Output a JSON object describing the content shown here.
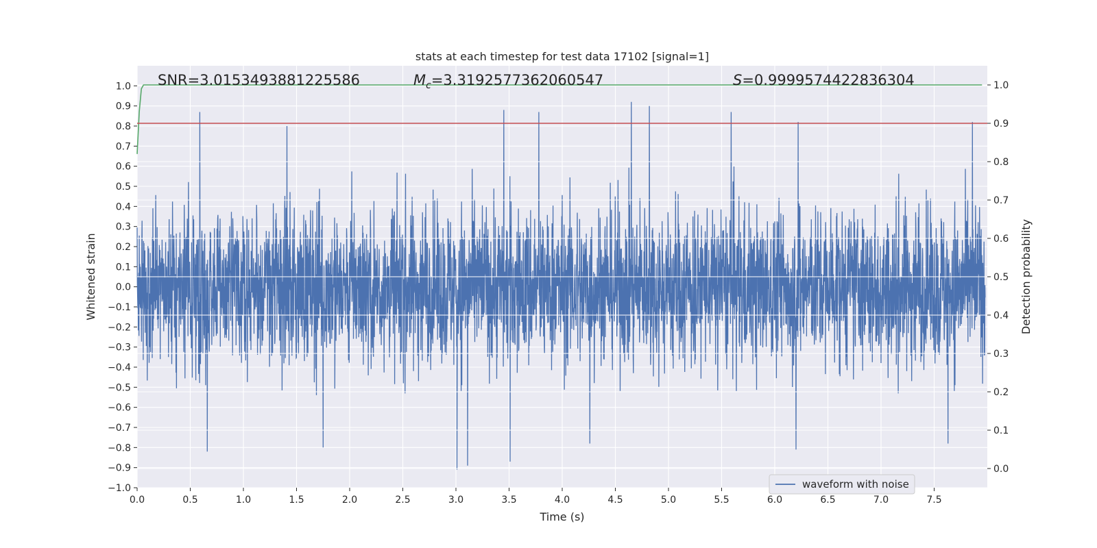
{
  "chart_data": {
    "type": "line",
    "title": "stats at each timestep for test data 17102 [signal=1]",
    "xlabel": "Time (s)",
    "ylabel_left": "Whitened strain",
    "ylabel_right": "Detection probability",
    "xlim": [
      0.0,
      8.0
    ],
    "ylim_left": [
      -1.0,
      1.1
    ],
    "ylim_right": [
      -0.05,
      1.05
    ],
    "x_ticks": [
      "0.0",
      "0.5",
      "1.0",
      "1.5",
      "2.0",
      "2.5",
      "3.0",
      "3.5",
      "4.0",
      "4.5",
      "5.0",
      "5.5",
      "6.0",
      "6.5",
      "7.0",
      "7.5"
    ],
    "y_ticks_left": [
      "−1.0",
      "−0.9",
      "−0.8",
      "−0.7",
      "−0.6",
      "−0.5",
      "−0.4",
      "−0.3",
      "−0.2",
      "−0.1",
      "0.0",
      "0.1",
      "0.2",
      "0.3",
      "0.4",
      "0.5",
      "0.6",
      "0.7",
      "0.8",
      "0.9",
      "1.0"
    ],
    "y_ticks_right": [
      "0.0",
      "0.1",
      "0.2",
      "0.3",
      "0.4",
      "0.5",
      "0.6",
      "0.7",
      "0.8",
      "0.9",
      "1.0"
    ],
    "grid": true,
    "legend": {
      "placement": "lower-right",
      "entries": [
        {
          "name": "waveform with noise",
          "color": "#4c72b0"
        }
      ]
    },
    "annotations": {
      "snr": "SNR=3.0153493881225586",
      "mc_symbol": "M",
      "mc_sub": "c",
      "mc_value": "=3.3192577362060547",
      "s_symbol": "S",
      "s_value": "=0.9999574422836304"
    },
    "series": [
      {
        "name": "waveform with noise",
        "axis": "left",
        "color": "#4c72b0",
        "sampling": "dense noise, 8 s at ~2048 Hz",
        "envelope": {
          "typical": [
            -0.35,
            0.4
          ],
          "extremes": [
            -0.91,
            0.92
          ]
        },
        "peaks": [
          {
            "x": 0.59,
            "y": 0.87
          },
          {
            "x": 1.41,
            "y": 0.8
          },
          {
            "x": 3.45,
            "y": 0.88
          },
          {
            "x": 3.78,
            "y": 0.87
          },
          {
            "x": 4.65,
            "y": 0.92
          },
          {
            "x": 4.82,
            "y": 0.9
          },
          {
            "x": 5.59,
            "y": 0.87
          },
          {
            "x": 6.22,
            "y": 0.82
          },
          {
            "x": 7.86,
            "y": 0.82
          }
        ],
        "troughs": [
          {
            "x": 0.66,
            "y": -0.82
          },
          {
            "x": 1.75,
            "y": -0.8
          },
          {
            "x": 3.01,
            "y": -0.91
          },
          {
            "x": 3.11,
            "y": -0.89
          },
          {
            "x": 3.51,
            "y": -0.87
          },
          {
            "x": 4.26,
            "y": -0.78
          },
          {
            "x": 6.2,
            "y": -0.81
          },
          {
            "x": 7.63,
            "y": -0.78
          }
        ]
      },
      {
        "name": "detection probability",
        "axis": "right",
        "color": "#55a868",
        "x": [
          0.0,
          0.02,
          0.04,
          0.06,
          0.08,
          0.12,
          7.95
        ],
        "y": [
          0.82,
          0.93,
          0.99,
          1.0,
          1.0,
          1.0,
          1.0
        ]
      },
      {
        "name": "threshold",
        "axis": "right",
        "color": "#c44e52",
        "x": [
          0.0,
          8.0
        ],
        "y": [
          0.9,
          0.9
        ]
      }
    ]
  }
}
